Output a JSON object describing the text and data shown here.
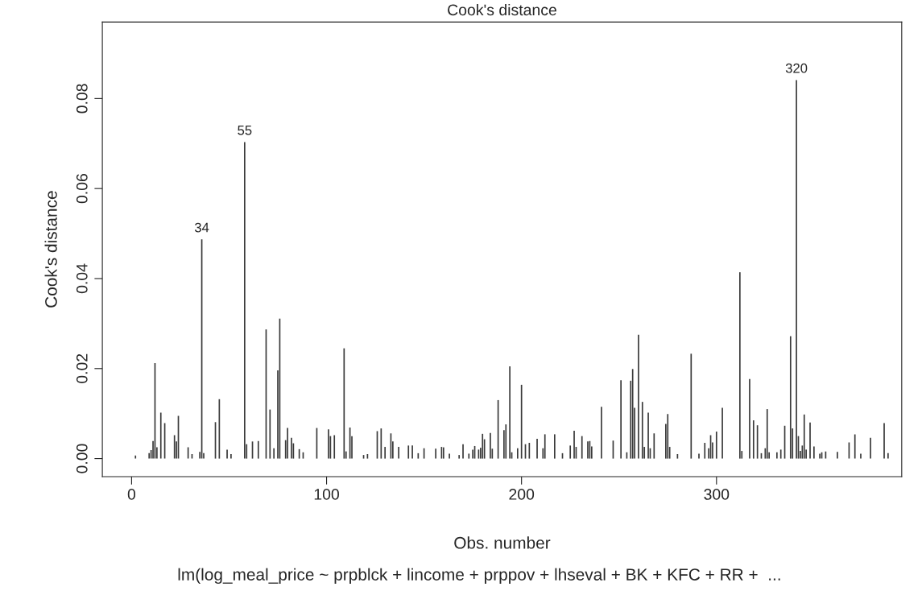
{
  "chart_data": {
    "type": "bar",
    "title": "Cook's distance",
    "xlabel": "Obs. number",
    "ylabel": "Cook's distance",
    "annotations": [
      {
        "text": "34",
        "x": 36,
        "y": 0.0487
      },
      {
        "text": "55",
        "x": 58,
        "y": 0.0703
      },
      {
        "text": "320",
        "x": 341,
        "y": 0.0841
      },
      "lm(log_meal_price ~ prpblck + lincome + prppov + lhseval + BK + KFC + RR +  ..."
    ],
    "x": [
      2,
      9,
      10,
      11,
      12,
      13,
      15,
      17,
      22,
      23,
      24,
      29,
      31,
      35,
      36,
      37,
      43,
      45,
      49,
      51,
      58,
      59,
      62,
      65,
      69,
      71,
      73,
      75,
      76,
      79,
      80,
      82,
      83,
      86,
      88,
      95,
      101,
      102,
      104,
      109,
      110,
      112,
      113,
      119,
      121,
      126,
      128,
      130,
      133,
      134,
      137,
      142,
      144,
      147,
      150,
      156,
      159,
      160,
      163,
      168,
      170,
      173,
      175,
      176,
      178,
      179,
      180,
      181,
      184,
      185,
      188,
      191,
      192,
      194,
      195,
      198,
      200,
      202,
      204,
      208,
      211,
      212,
      217,
      221,
      225,
      227,
      228,
      231,
      234,
      235,
      236,
      241,
      247,
      251,
      254,
      256,
      257,
      258,
      260,
      262,
      263,
      265,
      266,
      268,
      274,
      275,
      276,
      280,
      287,
      291,
      294,
      296,
      297,
      298,
      300,
      303,
      312,
      313,
      317,
      319,
      321,
      323,
      325,
      326,
      327,
      331,
      333,
      335,
      338,
      339,
      341,
      342,
      343,
      344,
      345,
      346,
      348,
      350,
      353,
      354,
      356,
      362,
      368,
      371,
      374,
      379,
      386,
      388
    ],
    "values": [
      0.0007,
      0.0012,
      0.0019,
      0.0039,
      0.0212,
      0.0025,
      0.0102,
      0.0079,
      0.0052,
      0.0038,
      0.0095,
      0.0025,
      0.001,
      0.0015,
      0.0487,
      0.0012,
      0.0081,
      0.0132,
      0.002,
      0.001,
      0.0703,
      0.0032,
      0.0038,
      0.0039,
      0.0287,
      0.0109,
      0.0023,
      0.0196,
      0.0311,
      0.0041,
      0.0068,
      0.0046,
      0.0034,
      0.0021,
      0.0014,
      0.0068,
      0.0065,
      0.005,
      0.0052,
      0.0245,
      0.0016,
      0.0069,
      0.005,
      0.0008,
      0.001,
      0.0061,
      0.0067,
      0.0026,
      0.0056,
      0.0038,
      0.0026,
      0.0029,
      0.0029,
      0.0012,
      0.0023,
      0.0022,
      0.0026,
      0.0025,
      0.0011,
      0.0008,
      0.0032,
      0.0011,
      0.002,
      0.0028,
      0.002,
      0.0024,
      0.0055,
      0.0043,
      0.0057,
      0.0022,
      0.013,
      0.0063,
      0.0076,
      0.0205,
      0.0014,
      0.0023,
      0.0164,
      0.0032,
      0.0035,
      0.0044,
      0.0023,
      0.0054,
      0.0054,
      0.0012,
      0.0029,
      0.0062,
      0.0026,
      0.005,
      0.0038,
      0.0039,
      0.0027,
      0.0115,
      0.004,
      0.0174,
      0.0014,
      0.0173,
      0.0199,
      0.0113,
      0.0275,
      0.0126,
      0.0026,
      0.0102,
      0.0023,
      0.0056,
      0.0077,
      0.0099,
      0.0026,
      0.001,
      0.0233,
      0.0011,
      0.0035,
      0.0023,
      0.0052,
      0.0036,
      0.006,
      0.0113,
      0.0414,
      0.0017,
      0.0177,
      0.0085,
      0.0074,
      0.0012,
      0.0023,
      0.011,
      0.0014,
      0.0014,
      0.002,
      0.0073,
      0.0272,
      0.0067,
      0.0841,
      0.005,
      0.0017,
      0.0029,
      0.0098,
      0.002,
      0.008,
      0.0027,
      0.0011,
      0.0014,
      0.0016,
      0.0015,
      0.0036,
      0.0054,
      0.0011,
      0.0046,
      0.0079,
      0.0012
    ],
    "color": "#3a3a3a",
    "xlim": [
      -15,
      395
    ],
    "ylim": [
      -0.004,
      0.097
    ],
    "xticks": [
      0,
      100,
      200,
      300
    ],
    "yticks": [
      {
        "value": 0,
        "label": "0.00"
      },
      {
        "value": 0.02,
        "label": "0.02"
      },
      {
        "value": 0.04,
        "label": "0.04"
      },
      {
        "value": 0.06,
        "label": "0.06"
      },
      {
        "value": 0.08,
        "label": "0.08"
      }
    ],
    "grid": false
  }
}
